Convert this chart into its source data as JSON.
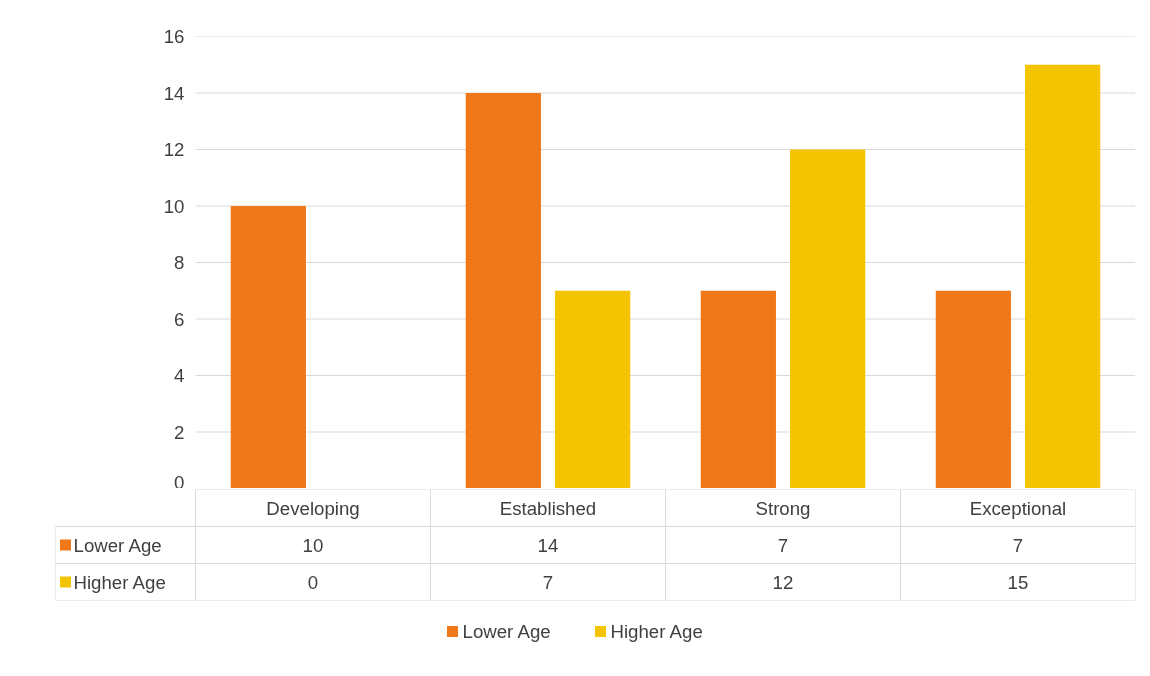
{
  "chart_data": {
    "type": "bar",
    "categories": [
      "Developing",
      "Established",
      "Strong",
      "Exceptional"
    ],
    "series": [
      {
        "name": "Lower Age",
        "color": "#f07818",
        "values": [
          10,
          14,
          7,
          7
        ]
      },
      {
        "name": "Higher Age",
        "color": "#f5c400",
        "values": [
          0,
          7,
          12,
          15
        ]
      }
    ],
    "ylim": [
      0,
      16
    ],
    "yticks": [
      0,
      2,
      4,
      6,
      8,
      10,
      12,
      14,
      16
    ],
    "grid": "y",
    "legend": "bottom",
    "data_labels": true
  }
}
